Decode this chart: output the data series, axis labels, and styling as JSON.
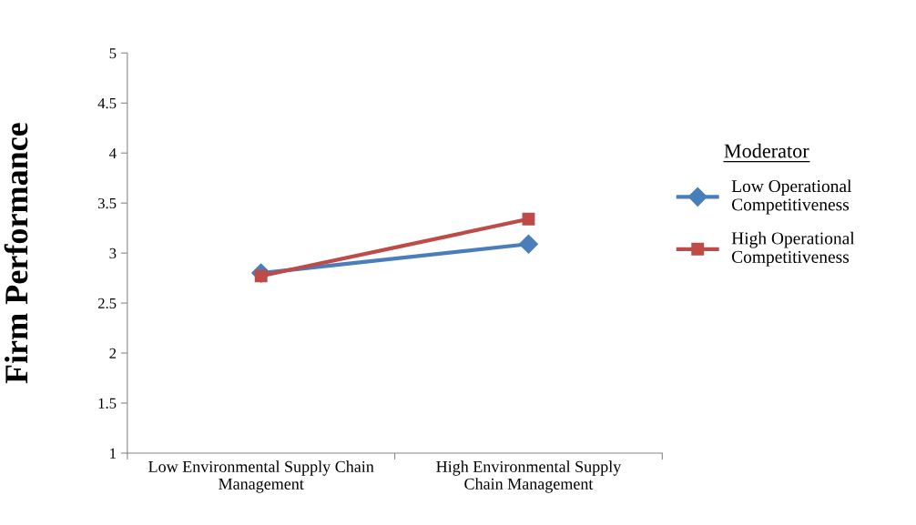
{
  "chart_data": {
    "type": "line",
    "ylabel": "Firm Performance",
    "legend_title": "Moderator",
    "categories": [
      "Low Environmental Supply Chain\nManagement",
      "High Environmental Supply\nChain Management"
    ],
    "series": [
      {
        "name": "Low Operational\nCompetitiveness",
        "color": "#4a7ebb",
        "values": [
          2.8,
          3.09
        ],
        "marker": "diamond"
      },
      {
        "name": "High Operational\nCompetitiveness",
        "color": "#be4b48",
        "values": [
          2.77,
          3.34
        ],
        "marker": "square"
      }
    ],
    "ylim": [
      1,
      5
    ],
    "yticks": [
      1,
      1.5,
      2,
      2.5,
      3,
      3.5,
      4,
      4.5,
      5
    ],
    "grid": false,
    "legend": "right",
    "line_style": "solid"
  }
}
